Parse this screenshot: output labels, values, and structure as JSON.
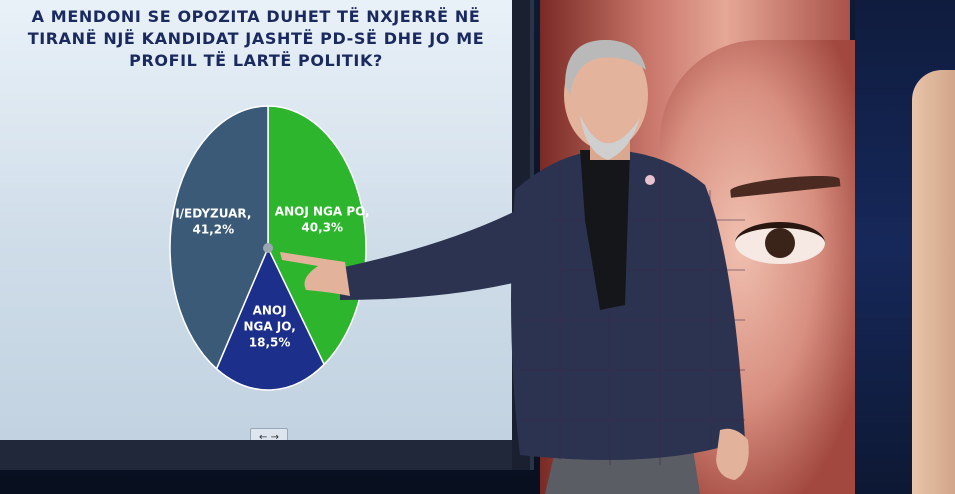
{
  "chart_data": {
    "type": "pie",
    "title": "A MENDONI SE OPOZITA DUHET TË NXJERRË NË\nTIRANË NJË KANDIDAT JASHTË PD-SË DHE JO ME\nPROFIL TË LARTË POLITIK?",
    "slices": [
      {
        "label": "ANOJ NGA PO,",
        "value_text": "40,3%",
        "value": 40.3,
        "color": "#2db52d"
      },
      {
        "label": "ANOJ\nNGA JO,",
        "value_text": "18,5%",
        "value": 18.5,
        "color": "#1c2f8a"
      },
      {
        "label": "I/EDYZUAR,",
        "value_text": "41,2%",
        "value": 41.2,
        "color": "#3a5a78"
      }
    ],
    "start_angle_deg": 0,
    "direction": "clockwise"
  },
  "colors": {
    "title_text": "#1a2a5e",
    "label_text": "#ffffff"
  },
  "screen": {
    "nav_label": "← →"
  }
}
